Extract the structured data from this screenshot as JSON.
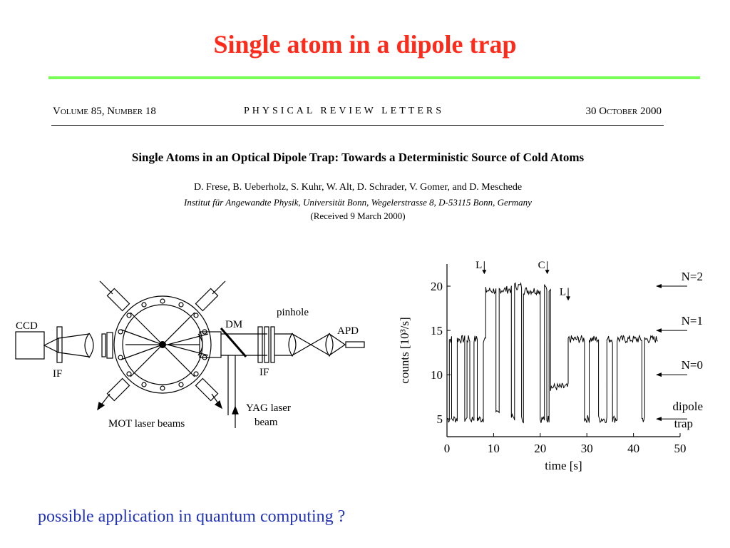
{
  "slide": {
    "title": "Single atom in a dipole trap",
    "footer": "possible application in quantum computing ?"
  },
  "paper": {
    "header_left": "Volume 85, Number 18",
    "header_center": "PHYSICAL REVIEW LETTERS",
    "header_right": "30 October 2000",
    "title": "Single Atoms in an Optical Dipole Trap:  Towards a Deterministic Source of Cold Atoms",
    "authors": "D. Frese, B. Ueberholz, S. Kuhr, W. Alt, D. Schrader, V. Gomer, and D. Meschede",
    "affiliation": "Institut für Angewandte Physik, Universität Bonn, Wegelerstrasse 8, D-53115 Bonn, Germany",
    "received": "(Received 9 March 2000)"
  },
  "setup_figure": {
    "labels": {
      "ccd": "CCD",
      "if_left": "IF",
      "dm": "DM",
      "pinhole": "pinhole",
      "apd": "APD",
      "if_right": "IF",
      "yag": "YAG laser",
      "yag_beam": "beam",
      "mot": "MOT laser beams"
    }
  },
  "chart_data": {
    "type": "line",
    "xlabel": "time [s]",
    "ylabel": "counts [10³/s]",
    "xlim": [
      0,
      50
    ],
    "ylim": [
      3,
      22.5
    ],
    "xticks": [
      0,
      10,
      20,
      30,
      40,
      50
    ],
    "yticks": [
      5,
      10,
      15,
      20
    ],
    "levels": [
      {
        "label": "N=2",
        "y": 20
      },
      {
        "label": "N=1",
        "y": 15
      },
      {
        "label": "N=0",
        "y": 10
      },
      {
        "label": "dipole",
        "label2": "trap",
        "y": 5
      }
    ],
    "annotations": [
      {
        "label": "L",
        "x": 8
      },
      {
        "label": "C",
        "x": 21.5
      },
      {
        "label": "L",
        "x": 26
      }
    ],
    "segments": [
      [
        0,
        0.5,
        5
      ],
      [
        0.5,
        1.0,
        14
      ],
      [
        1.0,
        2.2,
        5
      ],
      [
        2.2,
        3.8,
        14
      ],
      [
        3.8,
        4.3,
        5
      ],
      [
        4.3,
        4.9,
        14
      ],
      [
        4.9,
        5.8,
        5
      ],
      [
        5.8,
        6.5,
        14
      ],
      [
        6.5,
        7.8,
        5
      ],
      [
        7.8,
        8.3,
        14
      ],
      [
        8.3,
        10.5,
        19.5
      ],
      [
        10.5,
        11.2,
        5.5
      ],
      [
        11.2,
        13.8,
        19.6
      ],
      [
        13.8,
        14.5,
        5.2
      ],
      [
        14.5,
        16.0,
        20
      ],
      [
        16.0,
        16.4,
        5
      ],
      [
        16.4,
        20.0,
        19.5
      ],
      [
        20.0,
        20.9,
        5
      ],
      [
        20.9,
        21.4,
        19.8
      ],
      [
        21.4,
        21.9,
        5
      ],
      [
        21.9,
        22.2,
        19.8
      ],
      [
        22.2,
        26.0,
        8.6
      ],
      [
        26.0,
        29.5,
        14
      ],
      [
        29.5,
        30.5,
        5
      ],
      [
        30.5,
        32.5,
        14
      ],
      [
        32.5,
        34.3,
        5
      ],
      [
        34.3,
        35.5,
        14
      ],
      [
        35.5,
        36.5,
        5
      ],
      [
        36.5,
        41.8,
        14
      ],
      [
        41.8,
        42.4,
        5
      ],
      [
        42.4,
        45.2,
        14
      ]
    ]
  }
}
